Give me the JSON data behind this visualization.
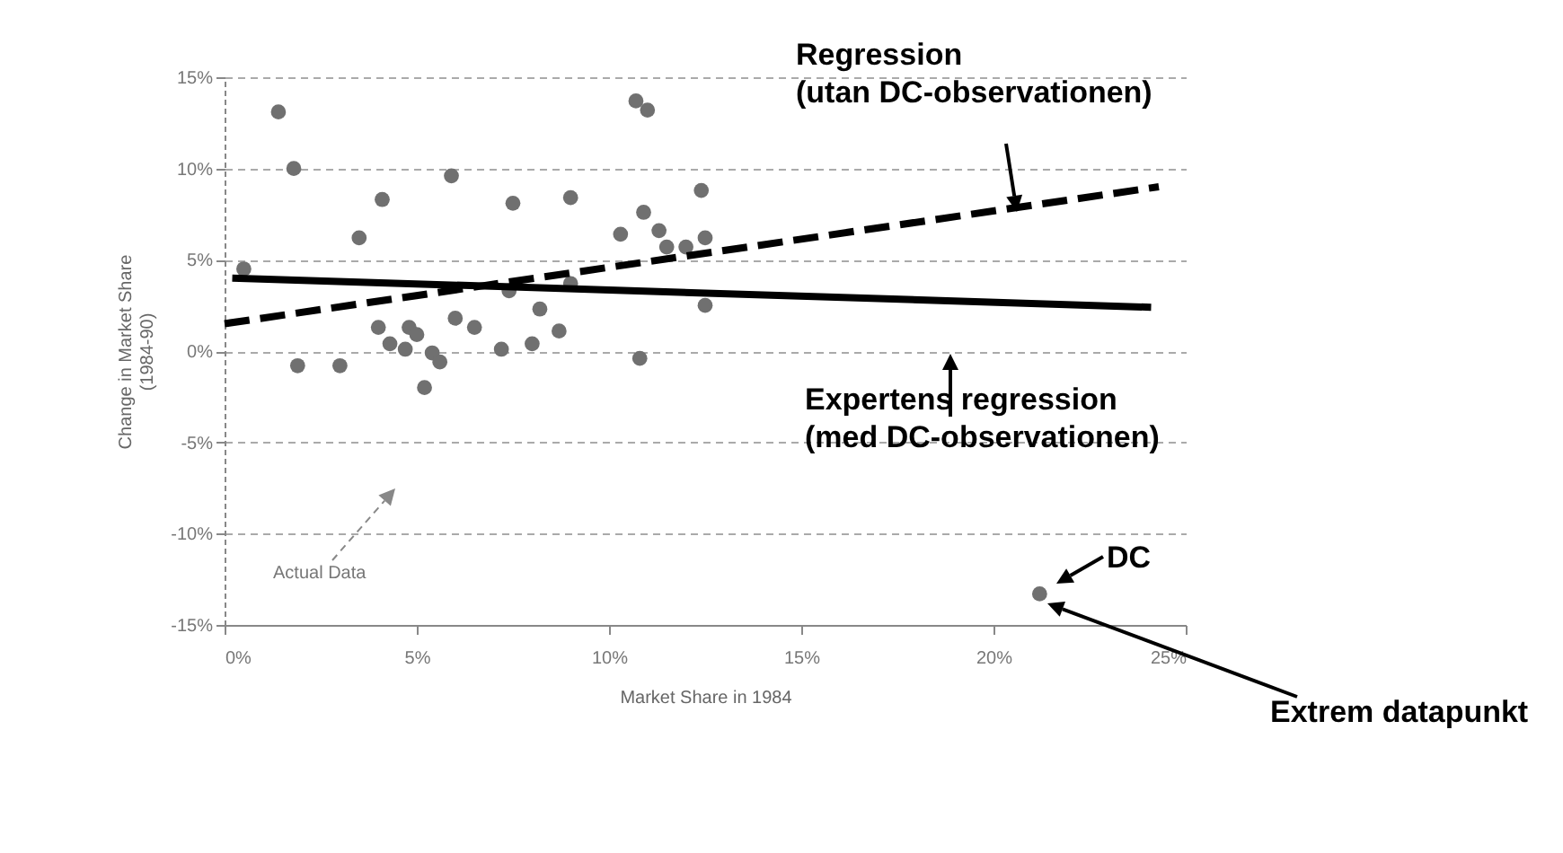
{
  "chart_data": {
    "type": "scatter",
    "xlabel": "Market Share in 1984",
    "ylabel": "Change in Market Share\n(1984-90)",
    "xlim": [
      0,
      25
    ],
    "xticks": [
      {
        "value": 0,
        "label": "0%"
      },
      {
        "value": 5,
        "label": "5%"
      },
      {
        "value": 10,
        "label": "10%"
      },
      {
        "value": 15,
        "label": "15%"
      },
      {
        "value": 20,
        "label": "20%"
      },
      {
        "value": 25,
        "label": "25%"
      }
    ],
    "ylim": [
      -15,
      15
    ],
    "yticks": [
      {
        "value": -15,
        "label": "-15%"
      },
      {
        "value": -10,
        "label": "-10%"
      },
      {
        "value": -5,
        "label": "-5%"
      },
      {
        "value": 0,
        "label": "0%"
      },
      {
        "value": 5,
        "label": "5%"
      },
      {
        "value": 10,
        "label": "10%"
      },
      {
        "value": 15,
        "label": "15%"
      }
    ],
    "grid": "y",
    "series": [
      {
        "marker": "circle",
        "color": "#707070",
        "x": [
          0.5,
          1.4,
          1.8,
          1.9,
          3.0,
          3.5,
          4.1,
          4.0,
          4.3,
          4.7,
          4.8,
          5.0,
          5.2,
          5.4,
          5.6,
          5.9,
          6.0,
          6.5,
          7.2,
          7.4,
          7.5,
          8.0,
          8.2,
          8.7,
          9.0,
          9.0,
          10.3,
          10.7,
          11.0,
          10.8,
          10.9,
          11.3,
          11.5,
          12.0,
          12.4,
          12.5,
          12.5,
          21.2
        ],
        "values": [
          4.5,
          13.1,
          10.0,
          -0.8,
          -0.8,
          6.2,
          8.3,
          1.3,
          0.4,
          0.1,
          1.3,
          0.9,
          -2.0,
          -0.1,
          -0.6,
          9.6,
          1.8,
          1.3,
          0.1,
          3.3,
          8.1,
          0.4,
          2.3,
          1.1,
          8.4,
          3.7,
          6.4,
          13.7,
          13.2,
          -0.4,
          7.6,
          6.6,
          5.7,
          5.7,
          8.8,
          6.2,
          2.5,
          -13.3
        ]
      },
      {
        "type": "line",
        "color": "#000000",
        "line_style": "dashed",
        "x": [
          0,
          24.3
        ],
        "values": [
          1.5,
          9.0
        ]
      },
      {
        "type": "line",
        "color": "#000000",
        "line_style": "solid",
        "x": [
          0.2,
          24.1
        ],
        "values": [
          4.0,
          2.4
        ]
      }
    ],
    "annotations": [
      "Actual Data",
      "Regression\n(utan DC-observationen)",
      "Expertens regression\n(med DC-observationen)",
      "DC",
      "Extrem datapunkt"
    ]
  }
}
